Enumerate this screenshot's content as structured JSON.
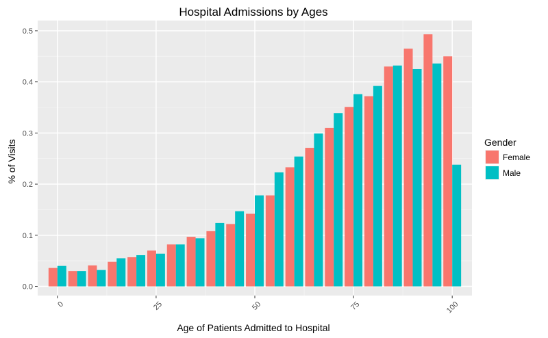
{
  "chart_data": {
    "type": "bar",
    "title": "Hospital Admissions by Ages",
    "xlabel": "Age of Patients Admitted to Hospital",
    "ylabel": "% of Visits",
    "x": [
      0,
      5,
      10,
      15,
      20,
      25,
      30,
      35,
      40,
      45,
      50,
      55,
      60,
      65,
      70,
      75,
      80,
      85,
      90,
      95,
      100
    ],
    "x_ticks": [
      "0",
      "25",
      "50",
      "75",
      "100"
    ],
    "x_tick_values": [
      0,
      25,
      50,
      75,
      100
    ],
    "y_ticks": [
      "0.0",
      "0.1",
      "0.2",
      "0.3",
      "0.4",
      "0.5"
    ],
    "y_tick_values": [
      0.0,
      0.1,
      0.2,
      0.3,
      0.4,
      0.5
    ],
    "xlim": [
      -5,
      105
    ],
    "ylim": [
      -0.018,
      0.52
    ],
    "grid": true,
    "legend": {
      "title": "Gender",
      "position": "right"
    },
    "series": [
      {
        "name": "Female",
        "color": "#F8766D",
        "values": [
          0.036,
          0.03,
          0.041,
          0.048,
          0.057,
          0.07,
          0.082,
          0.097,
          0.108,
          0.122,
          0.142,
          0.178,
          0.233,
          0.271,
          0.31,
          0.351,
          0.372,
          0.43,
          0.465,
          0.493,
          0.45
        ]
      },
      {
        "name": "Male",
        "color": "#00BFC4",
        "values": [
          0.04,
          0.03,
          0.032,
          0.055,
          0.061,
          0.064,
          0.082,
          0.094,
          0.124,
          0.147,
          0.178,
          0.223,
          0.254,
          0.299,
          0.339,
          0.376,
          0.392,
          0.432,
          0.425,
          0.436,
          0.238
        ]
      }
    ]
  }
}
